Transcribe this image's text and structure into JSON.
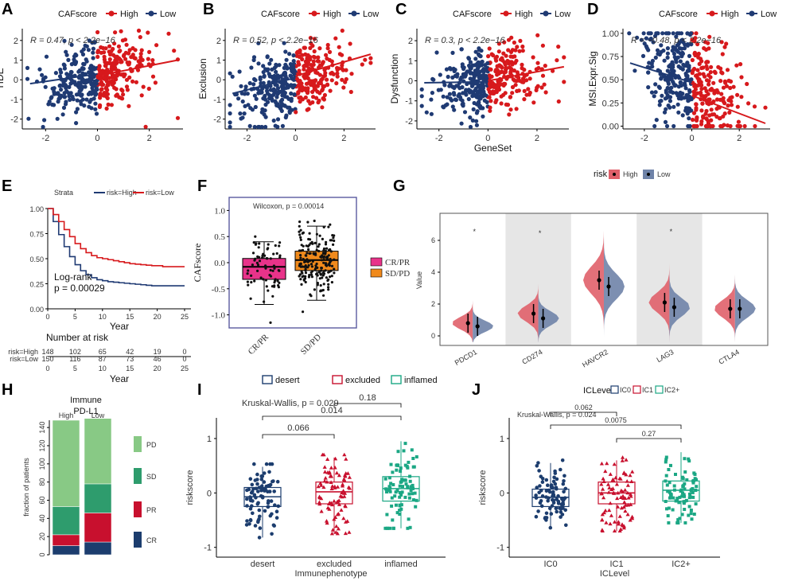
{
  "colors": {
    "high": "#d7191c",
    "low": "#1f3a73",
    "ci": "#7b8fb0",
    "pink": "#e8338a",
    "orange": "#f08a1c",
    "green1": "#88c985",
    "green2": "#2e9c6d",
    "red": "#c8102e",
    "navy": "#1c3d6e",
    "teal": "#1ba784",
    "purple": "#5a5aa0"
  },
  "panels": {
    "A": "A",
    "B": "B",
    "C": "C",
    "D": "D",
    "E": "E",
    "F": "F",
    "G": "G",
    "H": "H",
    "I": "I",
    "J": "J"
  },
  "chart_data": [
    {
      "id": "A",
      "type": "scatter",
      "legend_title": "CAFscore",
      "legend": [
        "High",
        "Low"
      ],
      "ylabel": "TIDE",
      "xlabel": "",
      "stat": "R = 0.47, p < 2.2e−16",
      "x_ticks": [
        -2,
        0,
        2
      ],
      "y_ticks": [
        -2,
        -1,
        0,
        1,
        2
      ],
      "xlim": [
        -2.9,
        3.3
      ],
      "ylim": [
        -2.5,
        2.6
      ],
      "fit": {
        "low": [
          [
            -2.6,
            -0.2
          ],
          [
            0,
            0.3
          ]
        ],
        "high": [
          [
            0,
            0.2
          ],
          [
            3.1,
            1.0
          ]
        ]
      },
      "corr": 0.47
    },
    {
      "id": "B",
      "type": "scatter",
      "legend_title": "CAFscore",
      "legend": [
        "High",
        "Low"
      ],
      "ylabel": "Exclusion",
      "xlabel": "",
      "stat": "R = 0.52, p < 2.2e−16",
      "x_ticks": [
        -2,
        0,
        2
      ],
      "y_ticks": [
        -2,
        -1,
        0,
        1,
        2
      ],
      "xlim": [
        -2.9,
        3.3
      ],
      "ylim": [
        -2.5,
        2.6
      ],
      "fit": {
        "low": [
          [
            -2.6,
            -0.7
          ],
          [
            0,
            0.1
          ]
        ],
        "high": [
          [
            0,
            0.2
          ],
          [
            3.1,
            1.3
          ]
        ]
      },
      "corr": 0.52
    },
    {
      "id": "C",
      "type": "scatter",
      "legend_title": "CAFscore",
      "legend": [
        "High",
        "Low"
      ],
      "ylabel": "Dysfunction",
      "xlabel": "GeneSet",
      "stat": "R = 0.3, p < 2.2e−16",
      "x_ticks": [
        -2,
        0,
        2
      ],
      "y_ticks": [
        -2,
        -1,
        0,
        1,
        2
      ],
      "xlim": [
        -2.9,
        3.3
      ],
      "ylim": [
        -2.4,
        2.6
      ],
      "fit": {
        "low": [
          [
            -2.6,
            -0.1
          ],
          [
            0,
            -0.05
          ]
        ],
        "high": [
          [
            0,
            0.0
          ],
          [
            3.1,
            0.7
          ]
        ]
      },
      "corr": 0.3
    },
    {
      "id": "D",
      "type": "scatter",
      "legend_title": "CAFscore",
      "legend": [
        "High",
        "Low"
      ],
      "ylabel": "MSI.Expr.Sig",
      "xlabel": "",
      "stat": "R = −0.48, p < 2.2e−16",
      "x_ticks": [
        -2,
        0,
        2
      ],
      "y_ticks": [
        "0.00",
        "0.25",
        "0.50",
        "0.75",
        "1.00"
      ],
      "xlim": [
        -2.9,
        3.3
      ],
      "ylim": [
        -0.03,
        1.05
      ],
      "fit": {
        "low": [
          [
            -2.6,
            0.68
          ],
          [
            0,
            0.47
          ]
        ],
        "high": [
          [
            0,
            0.33
          ],
          [
            3.1,
            0.03
          ]
        ]
      },
      "corr": -0.48
    },
    {
      "id": "E",
      "type": "line",
      "strata_title": "Strata",
      "series": [
        {
          "name": "risk=High",
          "values": [
            1.0,
            0.87,
            0.74,
            0.62,
            0.52,
            0.44,
            0.38,
            0.34,
            0.31,
            0.29,
            0.28,
            0.27,
            0.265,
            0.26,
            0.255,
            0.25,
            0.245,
            0.24,
            0.235,
            0.23,
            0.23,
            0.23,
            0.23,
            0.23,
            0.23,
            0.23
          ]
        },
        {
          "name": "risk=Low",
          "values": [
            1.0,
            0.94,
            0.87,
            0.79,
            0.72,
            0.65,
            0.6,
            0.56,
            0.53,
            0.51,
            0.5,
            0.49,
            0.48,
            0.47,
            0.46,
            0.45,
            0.445,
            0.44,
            0.435,
            0.43,
            0.43,
            0.42,
            0.42,
            0.42,
            0.42,
            0.42
          ]
        }
      ],
      "x": [
        0,
        1,
        2,
        3,
        4,
        5,
        6,
        7,
        8,
        9,
        10,
        11,
        12,
        13,
        14,
        15,
        16,
        17,
        18,
        19,
        20,
        21,
        22,
        23,
        24,
        25
      ],
      "xlabel": "Year",
      "y_ticks": [
        "0.00",
        "0.25",
        "0.50",
        "0.75",
        "1.00"
      ],
      "x_ticks": [
        "0",
        "5",
        "10",
        "15",
        "20",
        "25"
      ],
      "logrank": "Log-rank",
      "pvalue": "p = 0.00029",
      "risk_title": "Number at risk",
      "risk_rows": [
        {
          "name": "risk=High",
          "values": [
            "148",
            "102",
            "65",
            "42",
            "19",
            "0"
          ]
        },
        {
          "name": "risk=Low",
          "values": [
            "150",
            "116",
            "87",
            "73",
            "46",
            "0"
          ]
        }
      ]
    },
    {
      "id": "F",
      "type": "box",
      "ylabel": "CAFscore",
      "categories": [
        "CR/PR",
        "SD/PD"
      ],
      "stat": "Wilcoxon, p = 0.00014",
      "boxes": [
        {
          "q1": -0.32,
          "median": -0.08,
          "q3": 0.08,
          "lo": -0.8,
          "hi": 0.4
        },
        {
          "q1": -0.15,
          "median": 0.05,
          "q3": 0.22,
          "lo": -0.72,
          "hi": 0.7
        }
      ],
      "y_ticks": [
        "-1.0",
        "-0.5",
        "0.0",
        "0.5",
        "1.0"
      ],
      "legend": [
        "CR/PR",
        "SD/PD"
      ]
    },
    {
      "id": "G",
      "type": "violin",
      "legend_title": "risk",
      "legend": [
        "High",
        "Low"
      ],
      "ylabel": "Value",
      "categories": [
        "PDCD1",
        "CD274",
        "HAVCR2",
        "LAG3",
        "CTLA4"
      ],
      "y_ticks": [
        "0",
        "2",
        "4",
        "6"
      ],
      "medians_high": [
        0.8,
        1.4,
        3.5,
        2.1,
        1.7
      ],
      "medians_low": [
        0.6,
        1.1,
        3.1,
        1.8,
        1.7
      ],
      "outliers": [
        "*",
        "*",
        "",
        "*",
        ""
      ]
    },
    {
      "id": "H",
      "type": "bar",
      "title_line1": "Immune",
      "title_line2": "PD-L1",
      "ylabel": "fraction of patients",
      "categories": [
        "High",
        "Low"
      ],
      "series": [
        {
          "name": "CR",
          "values": [
            10,
            14
          ]
        },
        {
          "name": "PR",
          "values": [
            12,
            32
          ]
        },
        {
          "name": "SD",
          "values": [
            31,
            32
          ]
        },
        {
          "name": "PD",
          "values": [
            95,
            72
          ]
        }
      ],
      "y_ticks": [
        "0",
        "20",
        "40",
        "60",
        "80",
        "100",
        "120",
        "140"
      ],
      "legend": [
        "PD",
        "SD",
        "PR",
        "CR"
      ]
    },
    {
      "id": "I",
      "type": "box",
      "legend": [
        "desert",
        "excluded",
        "inflamed"
      ],
      "ylabel": "riskscore",
      "xlabel": "Immunephenotype",
      "categories": [
        "desert",
        "excluded",
        "inflamed"
      ],
      "stat": "Kruskal-Wallis, p = 0.029",
      "comparisons": [
        "0.066",
        "0.014",
        "0.18"
      ],
      "boxes": [
        {
          "q1": -0.25,
          "median": -0.07,
          "q3": 0.1,
          "lo": -0.82,
          "hi": 0.48
        },
        {
          "q1": -0.2,
          "median": 0.02,
          "q3": 0.2,
          "lo": -0.75,
          "hi": 0.65
        },
        {
          "q1": -0.15,
          "median": 0.08,
          "q3": 0.3,
          "lo": -0.65,
          "hi": 0.95
        }
      ],
      "y_ticks": [
        "-1",
        "0",
        "1"
      ]
    },
    {
      "id": "J",
      "type": "box",
      "legend_title": "ICLevel",
      "legend": [
        "IC0",
        "IC1",
        "IC2+"
      ],
      "ylabel": "riskscore",
      "xlabel": "ICLevel",
      "categories": [
        "IC0",
        "IC1",
        "IC2+"
      ],
      "stat": "Kruskal-Wallis, p = 0.024",
      "comparisons": [
        "0.062",
        "0.0075",
        "0.27"
      ],
      "boxes": [
        {
          "q1": -0.25,
          "median": -0.08,
          "q3": 0.07,
          "lo": -0.65,
          "hi": 0.55
        },
        {
          "q1": -0.2,
          "median": 0.0,
          "q3": 0.2,
          "lo": -0.7,
          "hi": 0.6
        },
        {
          "q1": -0.15,
          "median": 0.05,
          "q3": 0.22,
          "lo": -0.55,
          "hi": 0.75
        }
      ],
      "y_ticks": [
        "-1",
        "0",
        "1"
      ]
    }
  ]
}
